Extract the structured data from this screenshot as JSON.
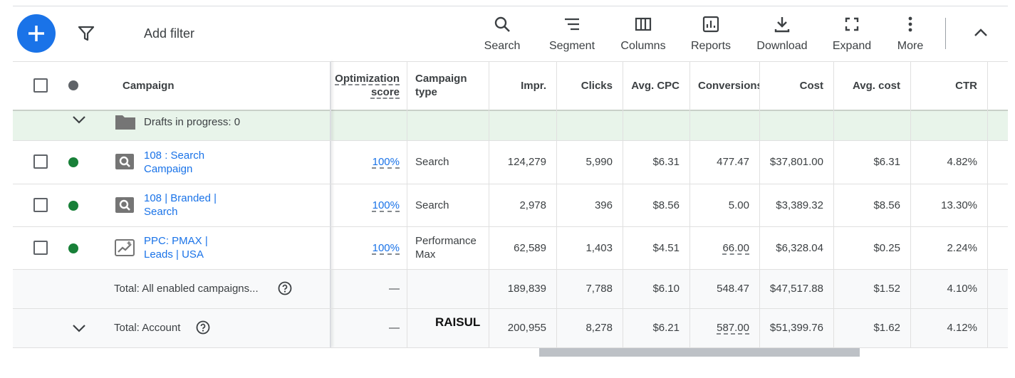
{
  "toolbar": {
    "add_filter": "Add filter",
    "buttons": [
      "Search",
      "Segment",
      "Columns",
      "Reports",
      "Download",
      "Expand",
      "More"
    ]
  },
  "table": {
    "headers": [
      "Campaign",
      "Optimization score",
      "Campaign type",
      "Impr.",
      "Clicks",
      "Avg. CPC",
      "Conversions",
      "Cost",
      "Avg. cost",
      "CTR"
    ],
    "drafts": "Drafts in progress: 0",
    "rows": [
      [
        "108 : Search Campaign",
        "100%",
        "Search",
        "124,279",
        "5,990",
        "$6.31",
        "477.47",
        "$37,801.00",
        "$6.31",
        "4.82%"
      ],
      [
        "108 | Branded | Search",
        "100%",
        "Search",
        "2,978",
        "396",
        "$8.56",
        "5.00",
        "$3,389.32",
        "$8.56",
        "13.30%"
      ],
      [
        "PPC: PMAX | Leads | USA",
        "100%",
        "Performance Max",
        "62,589",
        "1,403",
        "$4.51",
        "66.00",
        "$6,328.04",
        "$0.25",
        "2.24%"
      ]
    ],
    "totals": [
      {
        "label": "Total: All enabled campaigns...",
        "score": "—",
        "values": [
          "189,839",
          "7,788",
          "$6.10",
          "548.47",
          "$47,517.88",
          "$1.52",
          "4.10%"
        ]
      },
      {
        "label": "Total: Account",
        "score": "—",
        "values": [
          "200,955",
          "8,278",
          "$6.21",
          "587.00",
          "$51,399.76",
          "$1.62",
          "4.12%"
        ]
      }
    ],
    "watermark": "RAISUL"
  }
}
